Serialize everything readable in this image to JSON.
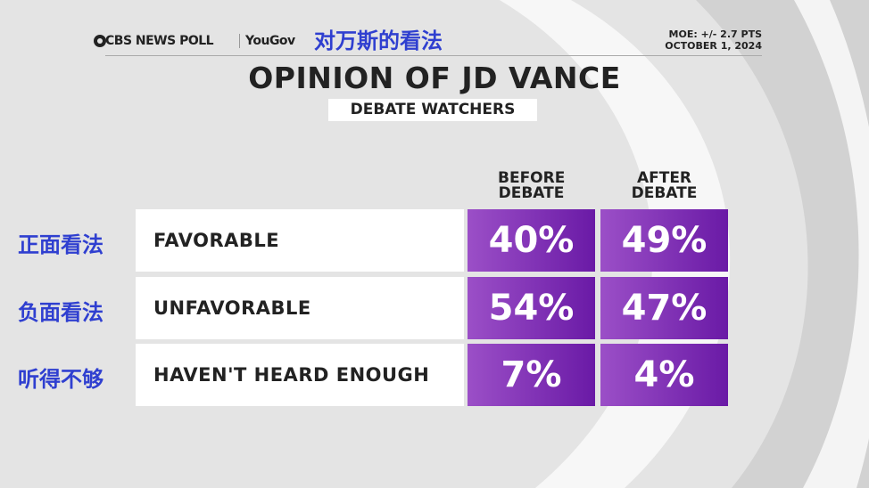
{
  "header": {
    "brand": "CBS NEWS POLL",
    "partner": "YouGov",
    "annotation": "对万斯的看法",
    "moe": "MOE: +/- 2.7 PTS",
    "date": "OCTOBER 1, 2024"
  },
  "title": "OPINION OF JD VANCE",
  "subtitle": "DEBATE WATCHERS",
  "table": {
    "columns": [
      "BEFORE DEBATE",
      "AFTER DEBATE"
    ],
    "rows": [
      {
        "annotation": "正面看法",
        "label": "FAVORABLE",
        "before": "40%",
        "after": "49%"
      },
      {
        "annotation": "负面看法",
        "label": "UNFAVORABLE",
        "before": "54%",
        "after": "47%"
      },
      {
        "annotation": "听得不够",
        "label": "HAVEN'T HEARD ENOUGH",
        "before": "7%",
        "after": "4%"
      }
    ]
  }
}
